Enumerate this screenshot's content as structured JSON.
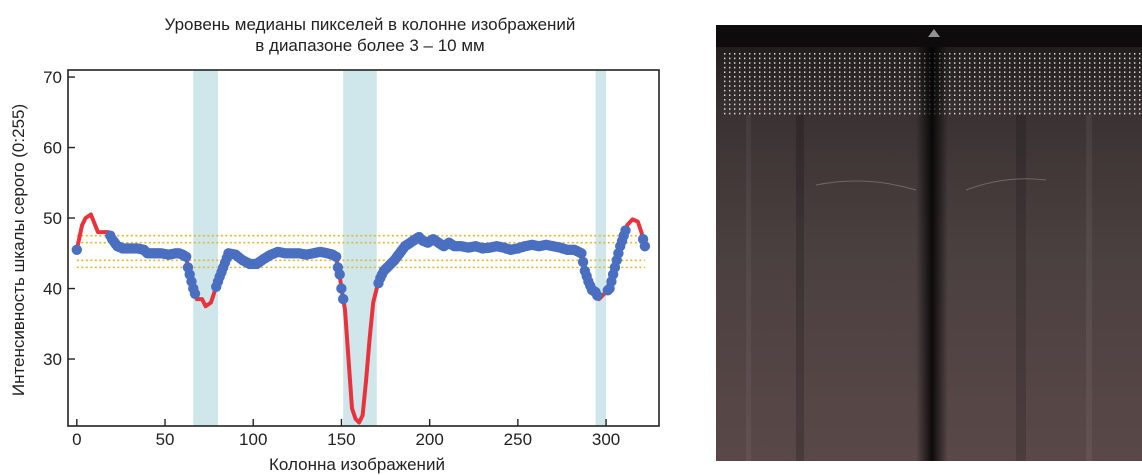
{
  "chart_data": {
    "type": "line",
    "title": "Уровень медианы пикселей в колонне изображений в диапазоне более 3 – 10 мм",
    "title_lines": [
      "Уровень медианы пикселей в колонне изображений",
      "в диапазоне более 3 – 10 мм"
    ],
    "xlabel": "Колонна изображений",
    "ylabel": "Интенсивность шкалы серого (0:255)",
    "xlim": [
      -5,
      330
    ],
    "ylim": [
      20.5,
      71
    ],
    "x_ticks": [
      0,
      50,
      100,
      150,
      200,
      250,
      300
    ],
    "y_ticks": [
      30,
      40,
      50,
      60,
      70
    ],
    "grid": false,
    "reference_lines": [
      47.5,
      46.5,
      44,
      43
    ],
    "highlight_regions": [
      [
        66,
        80
      ],
      [
        151,
        170
      ],
      [
        294,
        300
      ]
    ],
    "series": [
      {
        "points": [
          [
            0,
            45.5
          ],
          [
            3,
            49
          ],
          [
            5,
            50
          ],
          [
            8,
            50.5
          ],
          [
            12,
            48
          ],
          [
            16,
            48
          ],
          [
            18,
            48
          ],
          [
            20,
            47
          ],
          [
            23,
            46
          ],
          [
            26,
            45.7
          ],
          [
            30,
            45.7
          ],
          [
            34,
            45.7
          ],
          [
            38,
            45.5
          ],
          [
            40,
            45
          ],
          [
            42,
            45
          ],
          [
            45,
            45
          ],
          [
            48,
            45
          ],
          [
            52,
            44.8
          ],
          [
            56,
            45
          ],
          [
            58,
            45
          ],
          [
            60,
            44.8
          ],
          [
            62,
            44.5
          ],
          [
            63,
            43
          ],
          [
            64,
            42
          ],
          [
            66,
            40
          ],
          [
            68,
            38.5
          ],
          [
            71,
            38.5
          ],
          [
            73,
            37.5
          ],
          [
            76,
            38
          ],
          [
            78,
            39.5
          ],
          [
            80,
            41
          ],
          [
            83,
            43
          ],
          [
            86,
            45
          ],
          [
            90,
            44.8
          ],
          [
            94,
            44
          ],
          [
            98,
            43.5
          ],
          [
            102,
            43.5
          ],
          [
            106,
            44.2
          ],
          [
            110,
            44.8
          ],
          [
            114,
            45.2
          ],
          [
            118,
            45
          ],
          [
            122,
            45
          ],
          [
            126,
            45
          ],
          [
            130,
            44.8
          ],
          [
            134,
            45
          ],
          [
            138,
            45.2
          ],
          [
            142,
            45
          ],
          [
            145,
            44.8
          ],
          [
            147,
            44.5
          ],
          [
            148,
            43
          ],
          [
            149,
            42
          ],
          [
            150,
            40
          ],
          [
            152,
            37
          ],
          [
            154,
            30
          ],
          [
            156,
            23
          ],
          [
            158,
            21.5
          ],
          [
            160,
            21
          ],
          [
            162,
            22
          ],
          [
            164,
            27
          ],
          [
            166,
            33
          ],
          [
            168,
            38
          ],
          [
            170,
            40
          ],
          [
            172,
            41.5
          ],
          [
            174,
            42.5
          ],
          [
            176,
            43
          ],
          [
            178,
            43.5
          ],
          [
            180,
            44
          ],
          [
            183,
            45
          ],
          [
            186,
            46
          ],
          [
            189,
            46.5
          ],
          [
            192,
            47
          ],
          [
            194,
            47.3
          ],
          [
            195,
            47.5
          ],
          [
            196,
            46.8
          ],
          [
            199,
            46.5
          ],
          [
            202,
            47
          ],
          [
            205,
            46.5
          ],
          [
            208,
            46
          ],
          [
            211,
            46.5
          ],
          [
            214,
            46
          ],
          [
            218,
            46
          ],
          [
            222,
            45.8
          ],
          [
            226,
            46
          ],
          [
            230,
            45.7
          ],
          [
            234,
            45.8
          ],
          [
            238,
            46
          ],
          [
            242,
            45.8
          ],
          [
            246,
            45.5
          ],
          [
            250,
            45.7
          ],
          [
            254,
            46
          ],
          [
            258,
            46.2
          ],
          [
            262,
            46
          ],
          [
            266,
            46.2
          ],
          [
            270,
            46
          ],
          [
            274,
            45.8
          ],
          [
            278,
            45.5
          ],
          [
            282,
            45.5
          ],
          [
            286,
            45
          ],
          [
            288,
            42.5
          ],
          [
            290,
            41
          ],
          [
            292,
            39.8
          ],
          [
            294,
            39.5
          ],
          [
            296,
            38.5
          ],
          [
            298,
            39
          ],
          [
            300,
            39.5
          ],
          [
            302,
            40
          ],
          [
            304,
            42
          ],
          [
            306,
            44
          ],
          [
            308,
            46
          ],
          [
            310,
            47.5
          ],
          [
            312,
            49
          ],
          [
            315,
            49.8
          ],
          [
            318,
            49.5
          ],
          [
            320,
            48
          ],
          [
            322,
            46
          ]
        ],
        "highlighted_from_index": [
          0,
          20,
          68,
          77,
          130,
          166,
          167,
          168
        ],
        "segment_colors": [
          "red",
          "blue",
          "red",
          "blue",
          "red",
          "blue",
          "red",
          "blue",
          "red"
        ],
        "segment_breaks": [
          0,
          7,
          25,
          30,
          51,
          60,
          71,
          109,
          112,
          117,
          122
        ]
      }
    ],
    "colors": {
      "line": "#e8323c",
      "markers": "#4a6fc1",
      "reference": "#e0b92a",
      "highlight": "#cfe6ea",
      "axis": "#222222"
    }
  },
  "image_panel": {
    "description_icon": "grayscale-ultrasound-scan-image"
  }
}
